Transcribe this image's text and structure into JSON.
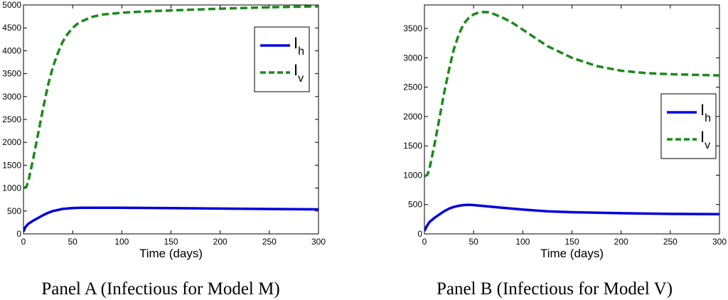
{
  "chart_data": [
    {
      "type": "line",
      "caption": "Panel A (Infectious for Model M)",
      "xlabel": "Time (days)",
      "ylabel": "",
      "xlim": [
        0,
        300
      ],
      "ylim": [
        0,
        5000
      ],
      "xticks": [
        0,
        50,
        100,
        150,
        200,
        250,
        300
      ],
      "yticks": [
        0,
        500,
        1000,
        1500,
        2000,
        2500,
        3000,
        3500,
        4000,
        4500,
        5000
      ],
      "grid": false,
      "legend_position": "top-right",
      "series": [
        {
          "name": "I_h",
          "label_main": "I",
          "label_sub": "h",
          "color": "#0000dd",
          "style": "solid",
          "x": [
            0,
            2,
            5,
            10,
            15,
            20,
            25,
            30,
            40,
            50,
            60,
            75,
            100,
            150,
            200,
            250,
            300
          ],
          "y": [
            50,
            150,
            220,
            290,
            350,
            410,
            460,
            500,
            545,
            565,
            570,
            572,
            570,
            563,
            553,
            543,
            535
          ]
        },
        {
          "name": "I_v",
          "label_main": "I",
          "label_sub": "v",
          "color": "#1a8a1a",
          "style": "dashed",
          "x": [
            0,
            3,
            5,
            10,
            15,
            20,
            25,
            30,
            35,
            40,
            45,
            50,
            55,
            60,
            70,
            80,
            100,
            125,
            150,
            200,
            250,
            300
          ],
          "y": [
            1000,
            1030,
            1150,
            1650,
            2200,
            2750,
            3250,
            3650,
            3950,
            4200,
            4370,
            4500,
            4590,
            4650,
            4740,
            4790,
            4830,
            4860,
            4880,
            4920,
            4950,
            4970
          ]
        }
      ]
    },
    {
      "type": "line",
      "caption": "Panel B (Infectious for Model V)",
      "xlabel": "Time (days)",
      "ylabel": "",
      "xlim": [
        0,
        300
      ],
      "ylim": [
        0,
        3900
      ],
      "xticks": [
        0,
        50,
        100,
        150,
        200,
        250,
        300
      ],
      "yticks": [
        0,
        500,
        1000,
        1500,
        2000,
        2500,
        3000,
        3500
      ],
      "grid": false,
      "legend_position": "right",
      "series": [
        {
          "name": "I_h",
          "label_main": "I",
          "label_sub": "h",
          "color": "#0000dd",
          "style": "solid",
          "x": [
            0,
            2,
            5,
            10,
            15,
            20,
            25,
            30,
            35,
            40,
            45,
            50,
            60,
            75,
            100,
            125,
            150,
            200,
            250,
            300
          ],
          "y": [
            50,
            120,
            200,
            270,
            330,
            385,
            430,
            460,
            480,
            490,
            495,
            490,
            475,
            450,
            415,
            385,
            370,
            352,
            340,
            335
          ]
        },
        {
          "name": "I_v",
          "label_main": "I",
          "label_sub": "v",
          "color": "#1a8a1a",
          "style": "dashed",
          "x": [
            0,
            3,
            5,
            10,
            15,
            20,
            25,
            30,
            35,
            40,
            45,
            50,
            55,
            60,
            65,
            70,
            80,
            90,
            100,
            125,
            150,
            175,
            200,
            225,
            250,
            275,
            300
          ],
          "y": [
            980,
            1010,
            1100,
            1500,
            1950,
            2400,
            2800,
            3150,
            3400,
            3580,
            3680,
            3740,
            3770,
            3780,
            3775,
            3750,
            3680,
            3590,
            3480,
            3200,
            3000,
            2860,
            2780,
            2740,
            2720,
            2710,
            2700
          ]
        }
      ]
    }
  ]
}
